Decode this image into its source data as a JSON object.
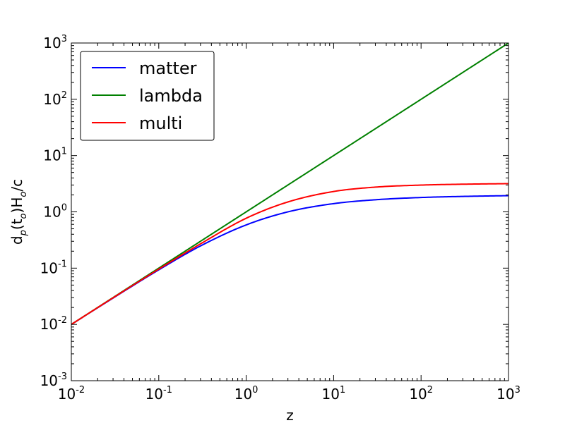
{
  "chart_data": {
    "type": "line",
    "x_scale": "log",
    "y_scale": "log",
    "xlim": [
      0.01,
      1000
    ],
    "ylim": [
      0.001,
      1000
    ],
    "xlabel": "z",
    "ylabel": {
      "base": "d",
      "base_sub": "p",
      "middle": "(t",
      "middle_sub": "o",
      "after": ")H",
      "after_sub": "o",
      "tail": "/c"
    },
    "x_ticks": [
      {
        "value": 0.01,
        "base": "10",
        "exp": "-2"
      },
      {
        "value": 0.1,
        "base": "10",
        "exp": "-1"
      },
      {
        "value": 1,
        "base": "10",
        "exp": "0"
      },
      {
        "value": 10,
        "base": "10",
        "exp": "1"
      },
      {
        "value": 100,
        "base": "10",
        "exp": "2"
      },
      {
        "value": 1000,
        "base": "10",
        "exp": "3"
      }
    ],
    "y_ticks": [
      {
        "value": 0.001,
        "base": "10",
        "exp": "-3"
      },
      {
        "value": 0.01,
        "base": "10",
        "exp": "-2"
      },
      {
        "value": 0.1,
        "base": "10",
        "exp": "-1"
      },
      {
        "value": 1,
        "base": "10",
        "exp": "0"
      },
      {
        "value": 10,
        "base": "10",
        "exp": "1"
      },
      {
        "value": 100,
        "base": "10",
        "exp": "2"
      },
      {
        "value": 1000,
        "base": "10",
        "exp": "3"
      }
    ],
    "legend_position": "top-left",
    "grid": false,
    "series": [
      {
        "name": "matter",
        "color": "#0000ff",
        "x": [
          0.01,
          0.03,
          0.1,
          0.3,
          1,
          3,
          10,
          30,
          100,
          300,
          1000
        ],
        "y": [
          0.01,
          0.0294,
          0.0932,
          0.248,
          0.586,
          1.0,
          1.4,
          1.64,
          1.8,
          1.88,
          1.94
        ]
      },
      {
        "name": "lambda",
        "color": "#008000",
        "x": [
          0.01,
          0.1,
          1,
          10,
          100,
          1000
        ],
        "y": [
          0.01,
          0.1,
          1,
          10,
          100,
          1000
        ]
      },
      {
        "name": "multi",
        "color": "#ff0000",
        "x": [
          0.01,
          0.03,
          0.1,
          0.3,
          1,
          3,
          10,
          30,
          100,
          300,
          1000
        ],
        "y": [
          0.01,
          0.0297,
          0.096,
          0.27,
          0.77,
          1.5,
          2.3,
          2.75,
          2.99,
          3.1,
          3.17
        ]
      }
    ]
  }
}
